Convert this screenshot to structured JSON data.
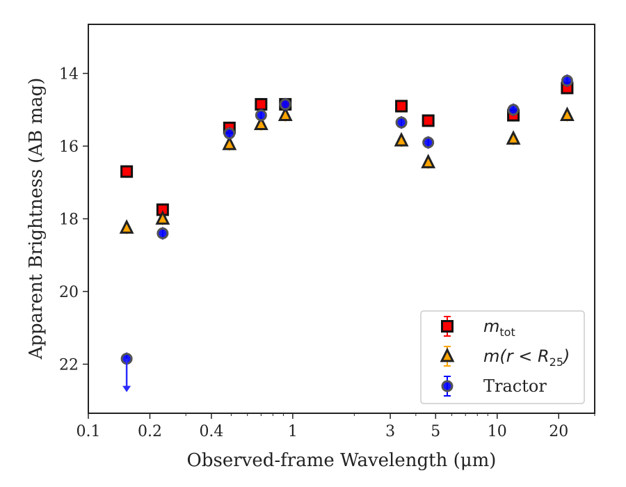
{
  "chart_data": {
    "type": "scatter",
    "title": "",
    "xlabel": "Observed-frame Wavelength (μm)",
    "ylabel": "Apparent Brightness (AB mag)",
    "x_scale": "log",
    "x_range": [
      0.1,
      30
    ],
    "y_range": [
      12.65,
      23.35
    ],
    "y_inverted": true,
    "x_ticks": [
      0.1,
      0.2,
      0.4,
      1,
      3,
      5,
      10,
      20
    ],
    "x_tick_labels": [
      "0.1",
      "0.2",
      "0.4",
      "1",
      "3",
      "5",
      "10",
      "20"
    ],
    "y_ticks": [
      14,
      16,
      18,
      20,
      22
    ],
    "y_tick_labels": [
      "14",
      "16",
      "18",
      "20",
      "22"
    ],
    "grid": false,
    "legend_position": "lower-right",
    "series": [
      {
        "name": "m_tot",
        "legend_text": "m",
        "legend_sub": "tot",
        "marker": "square",
        "fill": "#ff0000",
        "edge": "#111111",
        "errorbar_color": "#ff0000",
        "x": [
          0.154,
          0.231,
          0.49,
          0.7,
          0.92,
          3.4,
          4.6,
          12.0,
          22.0
        ],
        "y": [
          16.7,
          17.75,
          15.5,
          14.85,
          14.85,
          14.9,
          15.3,
          15.15,
          14.4
        ]
      },
      {
        "name": "m(r < R_25)",
        "legend_text": "m(r < R",
        "legend_sub": "25",
        "legend_suffix": ")",
        "marker": "triangle",
        "fill": "#ffa500",
        "edge": "#222222",
        "errorbar_color": "#ffa500",
        "x": [
          0.154,
          0.231,
          0.49,
          0.7,
          0.92,
          3.4,
          4.6,
          12.0,
          22.0
        ],
        "y": [
          18.25,
          18.0,
          15.95,
          15.4,
          15.15,
          15.85,
          16.45,
          15.8,
          15.15
        ]
      },
      {
        "name": "Tractor",
        "legend_text": "Tractor",
        "marker": "circle",
        "fill": "#0000ff",
        "edge": "#555555",
        "errorbar_color": "#0000ff",
        "x": [
          0.154,
          0.231,
          0.49,
          0.7,
          0.92,
          3.4,
          4.6,
          12.0,
          22.0
        ],
        "y": [
          21.85,
          18.4,
          15.65,
          15.15,
          14.85,
          15.35,
          15.9,
          15.0,
          14.2
        ],
        "upper_limit_index": 0,
        "upper_limit_arrow_to": 22.75
      }
    ]
  }
}
